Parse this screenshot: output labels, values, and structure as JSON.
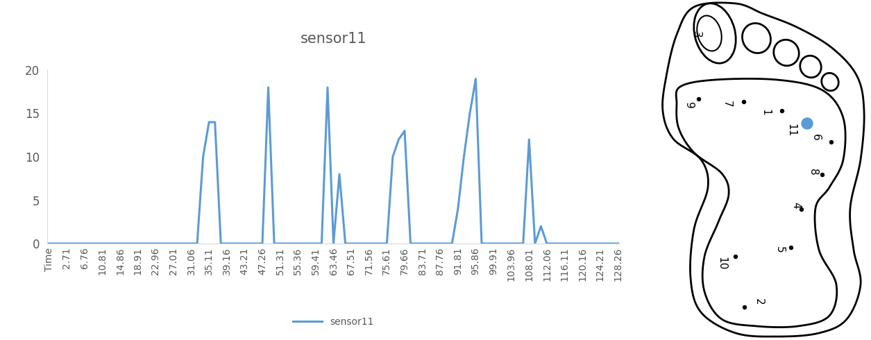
{
  "chart_data": {
    "type": "line",
    "title": "sensor11",
    "categories": [
      "Time",
      null,
      null,
      "2.71",
      null,
      null,
      "6.76",
      null,
      null,
      "10.81",
      null,
      null,
      "14.86",
      null,
      null,
      "18.91",
      null,
      null,
      "22.96",
      null,
      null,
      "27.01",
      null,
      null,
      "31.06",
      null,
      null,
      "35.11",
      null,
      null,
      "39.16",
      null,
      null,
      "43.21",
      null,
      null,
      "47.26",
      null,
      null,
      "51.31",
      null,
      null,
      "55.36",
      null,
      null,
      "59.41",
      null,
      null,
      "63.46",
      null,
      null,
      "67.51",
      null,
      null,
      "71.56",
      null,
      null,
      "75.61",
      null,
      null,
      "79.66",
      null,
      null,
      "83.71",
      null,
      null,
      "87.76",
      null,
      null,
      "91.81",
      null,
      null,
      "95.86",
      null,
      null,
      "99.91",
      null,
      null,
      "103.96",
      null,
      null,
      "108.01",
      null,
      null,
      "112.06",
      null,
      null,
      "116.11",
      null,
      null,
      "120.16",
      null,
      null,
      "124.21",
      null,
      null,
      "128.26"
    ],
    "series": [
      {
        "name": "sensor11",
        "color": "#5b9bd5",
        "values": [
          0,
          0,
          0,
          0,
          0,
          0,
          0,
          0,
          0,
          0,
          0,
          0,
          0,
          0,
          0,
          0,
          0,
          0,
          0,
          0,
          0,
          0,
          0,
          0,
          0,
          0,
          10,
          14,
          14,
          0,
          0,
          0,
          0,
          0,
          0,
          0,
          0,
          18,
          0,
          0,
          0,
          0,
          0,
          0,
          0,
          0,
          0,
          18,
          0,
          8,
          0,
          0,
          0,
          0,
          0,
          0,
          0,
          0,
          10,
          12,
          13,
          0,
          0,
          0,
          0,
          0,
          0,
          0,
          0,
          4,
          10,
          15,
          19,
          0,
          0,
          0,
          0,
          0,
          0,
          0,
          0,
          12,
          0,
          2,
          0,
          0,
          0,
          0,
          0,
          0,
          0,
          0,
          0,
          0,
          0,
          0,
          0
        ]
      }
    ],
    "ylim": [
      0,
      20
    ],
    "yticks": [
      0,
      5,
      10,
      15,
      20
    ],
    "grid": false,
    "legend": "lower center"
  },
  "diagram": {
    "sensor_labels": [
      "9",
      "7",
      "1",
      "11",
      "6",
      "8",
      "4",
      "5",
      "10",
      "2",
      "3"
    ]
  }
}
